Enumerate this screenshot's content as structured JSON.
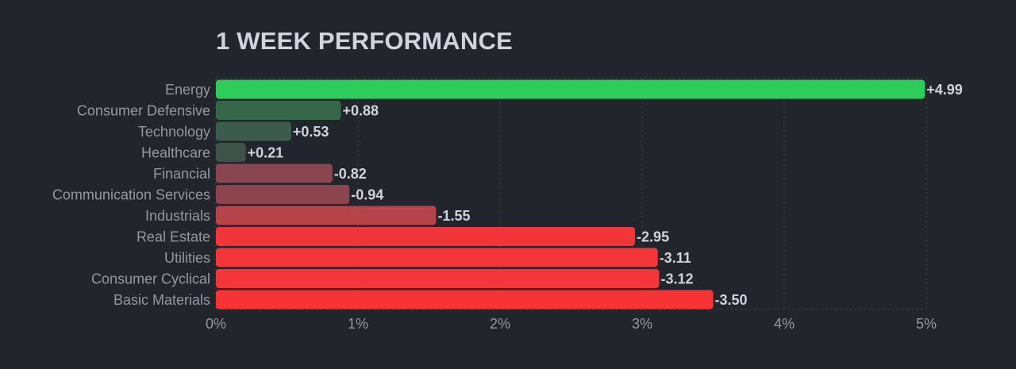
{
  "chart_data": {
    "type": "bar",
    "orientation": "horizontal",
    "title": "1 WEEK PERFORMANCE",
    "categories": [
      "Energy",
      "Consumer Defensive",
      "Technology",
      "Healthcare",
      "Financial",
      "Communication Services",
      "Industrials",
      "Real Estate",
      "Utilities",
      "Consumer Cyclical",
      "Basic Materials"
    ],
    "values": [
      4.99,
      0.88,
      0.53,
      0.21,
      -0.82,
      -0.94,
      -1.55,
      -2.95,
      -3.11,
      -3.12,
      -3.5
    ],
    "value_labels": [
      "+4.99",
      "+0.88",
      "+0.53",
      "+0.21",
      "-0.82",
      "-0.94",
      "-1.55",
      "-2.95",
      "-3.11",
      "-3.12",
      "-3.50"
    ],
    "bar_colors": [
      "#2ecc5b",
      "#35664a",
      "#3d5b4b",
      "#3f5249",
      "#8a4650",
      "#8c454f",
      "#b5434a",
      "#f2353b",
      "#f43539",
      "#f43539",
      "#f73336"
    ],
    "xlim": [
      0,
      5
    ],
    "xticks": [
      0,
      1,
      2,
      3,
      4,
      5
    ],
    "xtick_labels": [
      "0%",
      "1%",
      "2%",
      "3%",
      "4%",
      "5%"
    ],
    "grid": true,
    "bar_length": "absolute value",
    "legend": "none"
  }
}
